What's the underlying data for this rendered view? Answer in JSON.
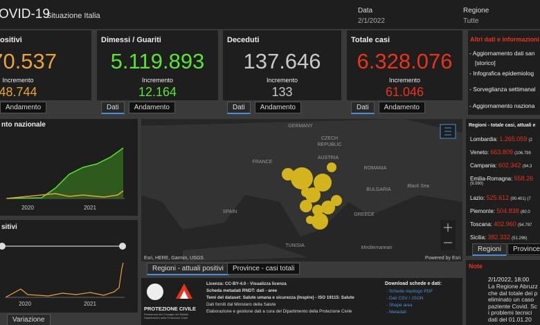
{
  "header": {
    "title": "OVID-19",
    "subtitle": "Situazione Italia",
    "date_label": "Data",
    "date": "2/1/2022",
    "region_label": "Regione",
    "region": "Tutte"
  },
  "cards": [
    {
      "title": "ositivi",
      "total": "070.537",
      "increment_label": "Incremento",
      "increment": "48.744",
      "tabs": [
        "Andamento"
      ]
    },
    {
      "title": "Dimessi / Guariti",
      "total": "5.119.893",
      "increment_label": "Incremento",
      "increment": "12.164",
      "tabs": [
        "Dati",
        "Andamento"
      ]
    },
    {
      "title": "Deceduti",
      "total": "137.646",
      "increment_label": "Incremento",
      "increment": "133",
      "tabs": [
        "Dati",
        "Andamento"
      ]
    },
    {
      "title": "Totale casi",
      "total": "6.328.076",
      "increment_label": "Incremento",
      "increment": "61.046",
      "tabs": [
        "Dati",
        "Andamento"
      ]
    }
  ],
  "charts": [
    {
      "title": "nto nazionale",
      "xlabels": [
        "2020",
        "2021"
      ]
    },
    {
      "title": "sitivi",
      "xlabels": [
        "2020",
        "2021"
      ],
      "tab": "Variazione"
    }
  ],
  "map": {
    "labels": [
      "GERMANY",
      "CZECH",
      "REPUBLIC",
      "AUSTRIA",
      "FRANCE",
      "ROMANIA",
      "BULGARIA",
      "Black Sea",
      "SPAIN",
      "GREECE",
      "TUNISIA",
      "Mediterranean"
    ],
    "attribution": "Esri, HERE, Garmin, USGS",
    "powered": "Powered by Esri",
    "tabs": [
      "Regioni - attuali positivi",
      "Province - casi totali"
    ]
  },
  "info": {
    "title": "Altri dati e informazioni",
    "links": [
      "- Aggiornamento dati san",
      "[storico]",
      "- Infografica epidemiolog",
      "- Sorveglianza settimanal",
      "- Aggiornamento naziona"
    ]
  },
  "regions": {
    "title": "Regioni - totale casi, attuali e",
    "items": [
      {
        "name": "Lombardia:",
        "value": "1.265.059",
        "detail": "(2"
      },
      {
        "name": "Veneto:",
        "value": "663.809",
        "detail": "(106.799"
      },
      {
        "name": "Campania:",
        "value": "602.342",
        "detail": "(94.3"
      },
      {
        "name": "Emilia-Romagna:",
        "value": "558.26",
        "detail": "(9.090)"
      },
      {
        "name": "Lazio:",
        "value": "525.612",
        "detail": "(90.401) (7"
      },
      {
        "name": "Piemonte:",
        "value": "504.838",
        "detail": "(80.0"
      },
      {
        "name": "Toscana:",
        "value": "402.960",
        "detail": "(94.797"
      },
      {
        "name": "Sicilia:",
        "value": "382.332",
        "detail": "(51.296)"
      }
    ],
    "tabs": [
      "Regioni",
      "Province"
    ]
  },
  "note": {
    "title": "Note",
    "date": "2/1/2022, 18:00",
    "lines": [
      "La Regione Abruzz",
      "che dal totale dei p",
      "eliminato un caso",
      "paziente Covid. Sc",
      "i problemi tecnici",
      "dati del 01.01.20"
    ]
  },
  "footer": {
    "logo": "PROTEZIONE CIVILE",
    "logo_sub": "Presidenza del Consiglio dei Ministri Dipartimento della Protezione Civile",
    "lines": [
      "Licenza: CC-BY-4.0 - Visualizza licenza",
      "Scheda metadati RNDT: dati - aree",
      "Temi del dataset: Salute umana e sicurezza (Inspire) - ISO 19115: Salute",
      "Dati forniti dal Ministero della Salute",
      "Elaborazione e gestione dati a cura del Dipartimento della Protezione Civile"
    ],
    "download_title": "Download schede e dati:",
    "downloads": [
      "- Schede riepilogo PDF",
      "- Dati CSV / JSON",
      "- Shape area",
      "- Metadati"
    ]
  }
}
